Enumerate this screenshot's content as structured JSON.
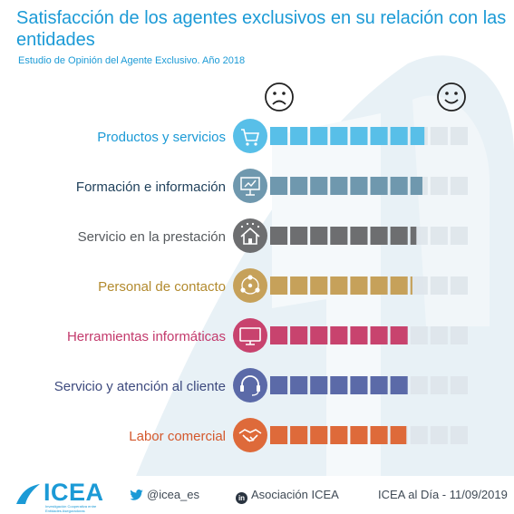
{
  "header": {
    "title": "Satisfacción de los agentes exclusivos en su relación con las entidades",
    "subtitle": "Estudio de Opinión del Agente Exclusivo. Año 2018"
  },
  "chart_data": {
    "type": "bar",
    "orientation": "horizontal",
    "segments_total": 10,
    "scale_icons": {
      "low": "sad-face-icon",
      "high": "happy-face-icon"
    },
    "categories": [
      "Productos y servicios",
      "Formación e información",
      "Servicio en la prestación",
      "Personal de contacto",
      "Herramientas informáticas",
      "Servicio y atención al cliente",
      "Labor comercial"
    ],
    "values": [
      7.7,
      7.6,
      7.3,
      7.1,
      7.0,
      7.0,
      6.8
    ],
    "colors": [
      "#58bfe8",
      "#6f98ae",
      "#6d6e70",
      "#c6a15a",
      "#c8436e",
      "#5b6aa8",
      "#de6a3a"
    ],
    "label_colors": [
      "#1b9ad6",
      "#1e3f5a",
      "#55595d",
      "#b28a2e",
      "#c33a6c",
      "#3d4a7e",
      "#d4582c"
    ],
    "icons": [
      "cart-icon",
      "presentation-icon",
      "house-icon",
      "people-network-icon",
      "computer-icon",
      "headset-icon",
      "handshake-icon"
    ],
    "xlim": [
      0,
      10
    ]
  },
  "footer": {
    "logo_text": "ICEA",
    "logo_tag": "Investigación Cooperativa entre Entidades Aseguradoras",
    "twitter": "@icea_es",
    "linkedin": "Asociación ICEA",
    "linkedin_badge": "in",
    "date": "ICEA al Día - 11/09/2019"
  }
}
